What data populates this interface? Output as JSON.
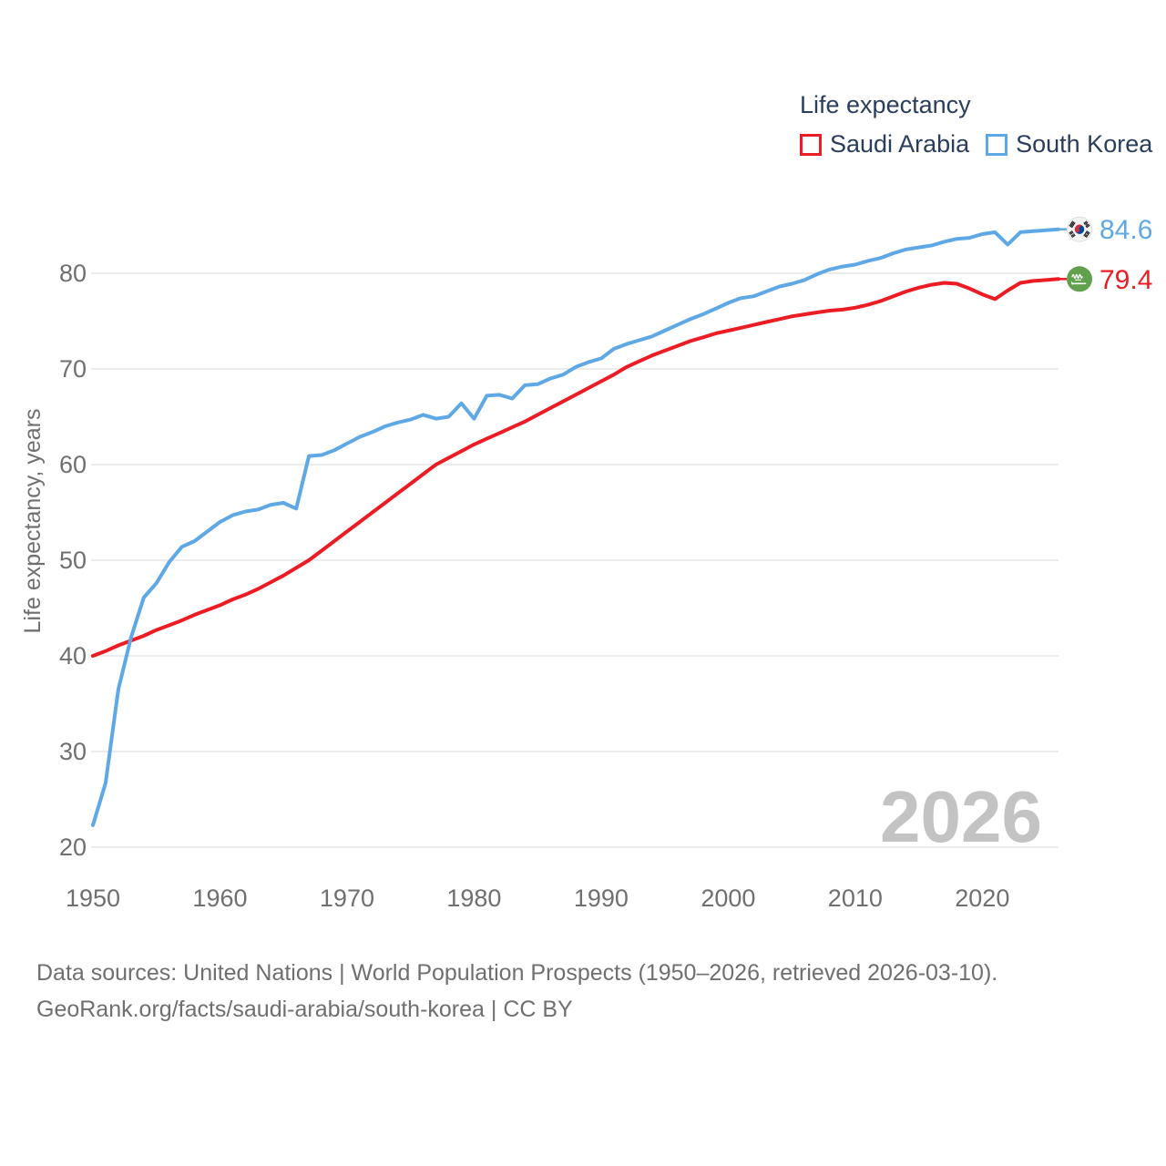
{
  "legend": {
    "title": "Life expectancy",
    "items": [
      {
        "label": "Saudi Arabia",
        "color": "#ec1c24"
      },
      {
        "label": "South Korea",
        "color": "#5fa8e6"
      }
    ]
  },
  "chart_data": {
    "type": "line",
    "title": "Life expectancy",
    "xlabel": "",
    "ylabel": "Life expectancy, years",
    "x_start": 1950,
    "x_end": 2026,
    "x_ticks": [
      1950,
      1960,
      1970,
      1980,
      1990,
      2000,
      2010,
      2020
    ],
    "y_ticks": [
      20,
      30,
      40,
      50,
      60,
      70,
      80
    ],
    "ylim": [
      20,
      86
    ],
    "grid": "horizontal",
    "legend_position": "top-right",
    "series": [
      {
        "name": "Saudi Arabia",
        "color": "#ec1c24",
        "end_label": "79.4",
        "flag": "saudi-arabia",
        "values": [
          40.0,
          40.5,
          41.1,
          41.6,
          42.1,
          42.7,
          43.2,
          43.7,
          44.3,
          44.8,
          45.3,
          45.9,
          46.4,
          47.0,
          47.7,
          48.4,
          49.2,
          50.0,
          51.0,
          52.0,
          53.0,
          54.0,
          55.0,
          56.0,
          57.0,
          58.0,
          59.0,
          60.0,
          60.7,
          61.4,
          62.1,
          62.7,
          63.3,
          63.9,
          64.5,
          65.2,
          65.9,
          66.6,
          67.3,
          68.0,
          68.7,
          69.4,
          70.2,
          70.8,
          71.4,
          71.9,
          72.4,
          72.9,
          73.3,
          73.7,
          74.0,
          74.3,
          74.6,
          74.9,
          75.2,
          75.5,
          75.7,
          75.9,
          76.1,
          76.2,
          76.4,
          76.7,
          77.1,
          77.6,
          78.1,
          78.5,
          78.8,
          79.0,
          78.9,
          78.4,
          77.8,
          77.3,
          78.2,
          79.0,
          79.2,
          79.3,
          79.4
        ]
      },
      {
        "name": "South Korea",
        "color": "#5fa8e6",
        "end_label": "84.6",
        "flag": "south-korea",
        "values": [
          22.3,
          26.7,
          36.5,
          41.9,
          46.1,
          47.6,
          49.8,
          51.4,
          52.0,
          53.0,
          54.0,
          54.7,
          55.1,
          55.3,
          55.8,
          56.0,
          55.4,
          60.9,
          61.0,
          61.5,
          62.2,
          62.9,
          63.4,
          64.0,
          64.4,
          64.7,
          65.2,
          64.8,
          65.0,
          66.4,
          64.8,
          67.2,
          67.3,
          66.9,
          68.3,
          68.4,
          69.0,
          69.4,
          70.2,
          70.7,
          71.1,
          72.1,
          72.6,
          73.0,
          73.4,
          74.0,
          74.6,
          75.2,
          75.7,
          76.3,
          76.9,
          77.4,
          77.6,
          78.1,
          78.6,
          78.9,
          79.3,
          79.9,
          80.4,
          80.7,
          80.9,
          81.3,
          81.6,
          82.1,
          82.5,
          82.7,
          82.9,
          83.3,
          83.6,
          83.7,
          84.1,
          84.3,
          83.0,
          84.3,
          84.4,
          84.5,
          84.6
        ]
      }
    ]
  },
  "watermark": "2026",
  "footer": {
    "line1": "Data sources: United Nations | World Population Prospects (1950–2026, retrieved 2026-03-10).",
    "line2": "GeoRank.org/facts/saudi-arabia/south-korea | CC BY"
  }
}
